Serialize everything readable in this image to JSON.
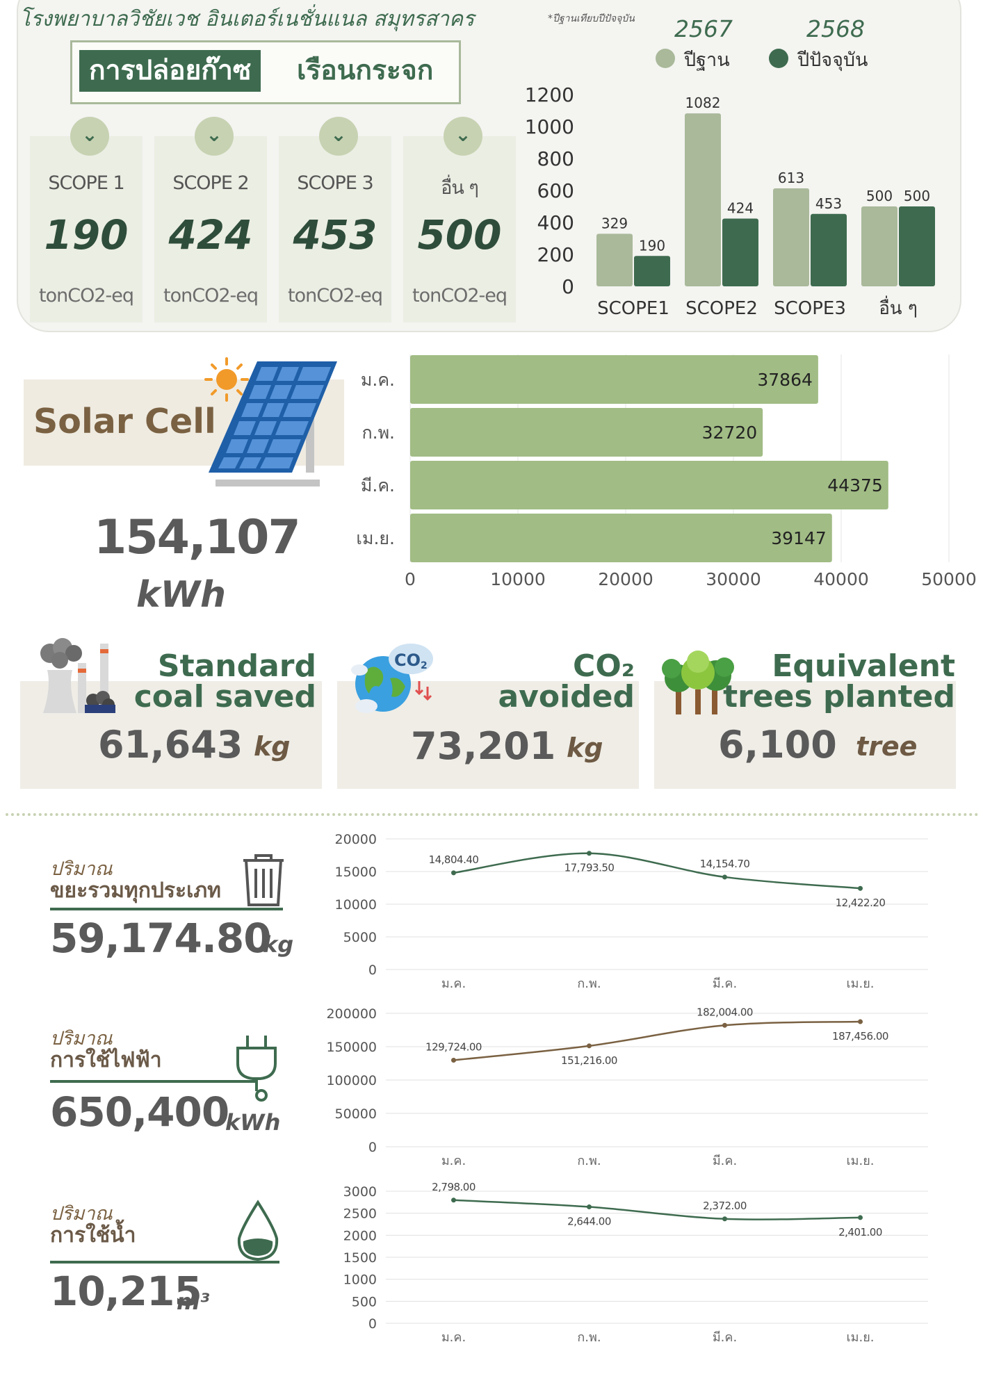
{
  "header": {
    "hospital_name": "โรงพยาบาลวิชัยเวช อินเตอร์เนชั่นแนล สมุทรสาคร",
    "baseline_note": "*ปีฐานเทียบปีปัจจุบัน",
    "title_part1": "การปล่อยก๊าซ",
    "title_part2": "เรือนกระจก"
  },
  "scopes": [
    {
      "label": "SCOPE 1",
      "value": "190",
      "unit": "tonCO2-eq"
    },
    {
      "label": "SCOPE 2",
      "value": "424",
      "unit": "tonCO2-eq"
    },
    {
      "label": "SCOPE 3",
      "value": "453",
      "unit": "tonCO2-eq"
    },
    {
      "label": "อื่น ๆ",
      "value": "500",
      "unit": "tonCO2-eq"
    }
  ],
  "legend": {
    "base_year": "2567",
    "base_label": "ปีฐาน",
    "current_year": "2568",
    "current_label": "ปีปัจจุบัน",
    "colors": {
      "base": "#a9b99a",
      "current": "#3e6b4f"
    }
  },
  "solar": {
    "title": "Solar Cell",
    "total": "154,107",
    "unit": "kWh"
  },
  "equivalents": [
    {
      "title_line1": "Standard",
      "title_line2": "coal saved",
      "value": "61,643",
      "unit": "kg",
      "icon": "power-plant-icon"
    },
    {
      "title_line1": "CO₂",
      "title_line2": "avoided",
      "value": "73,201",
      "unit": "kg",
      "icon": "earth-co2-icon"
    },
    {
      "title_line1": "Equivalent",
      "title_line2": "trees planted",
      "value": "6,100",
      "unit": "tree",
      "icon": "trees-icon"
    }
  ],
  "metrics": [
    {
      "sub": "ปริมาณ",
      "name": "ขยะรวมทุกประเภท",
      "value": "59,174.80",
      "unit": "kg",
      "icon": "trash-bin-icon"
    },
    {
      "sub": "ปริมาณ",
      "name": "การใช้ไฟฟ้า",
      "value": "650,400",
      "unit": "kWh",
      "icon": "electric-plug-icon"
    },
    {
      "sub": "ปริมาณ",
      "name": "การใช้น้ำ",
      "value": "10,215",
      "unit": "m³",
      "icon": "water-drop-icon"
    }
  ],
  "chart_data": [
    {
      "type": "bar",
      "categories": [
        "SCOPE1",
        "SCOPE2",
        "SCOPE3",
        "อื่น ๆ"
      ],
      "series": [
        {
          "name": "ปีฐาน",
          "values": [
            329,
            1082,
            613,
            500
          ]
        },
        {
          "name": "ปีปัจจุบัน",
          "values": [
            190,
            424,
            453,
            500
          ]
        }
      ],
      "ylim": [
        0,
        1200
      ],
      "yticks": [
        0,
        200,
        400,
        600,
        800,
        1000,
        1200
      ]
    },
    {
      "type": "bar",
      "orientation": "horizontal",
      "categories": [
        "ม.ค.",
        "ก.พ.",
        "มี.ค.",
        "เม.ย."
      ],
      "values": [
        37864,
        32720,
        44375,
        39147
      ],
      "xlim": [
        0,
        50000
      ],
      "xticks": [
        0,
        10000,
        20000,
        30000,
        40000,
        50000
      ]
    },
    {
      "type": "line",
      "categories": [
        "ม.ค.",
        "ก.พ.",
        "มี.ค.",
        "เม.ย."
      ],
      "values": [
        14804.4,
        17793.5,
        14154.7,
        12422.2
      ],
      "labels": [
        "14,804.40",
        "17,793.50",
        "14,154.70",
        "12,422.20"
      ],
      "ylim": [
        0,
        20000
      ],
      "yticks": [
        0,
        5000,
        10000,
        15000,
        20000
      ]
    },
    {
      "type": "line",
      "categories": [
        "ม.ค.",
        "ก.พ.",
        "มี.ค.",
        "เม.ย."
      ],
      "values": [
        129724.0,
        151216.0,
        182004.0,
        187456.0
      ],
      "labels": [
        "129,724.00",
        "151,216.00",
        "182,004.00",
        "187,456.00"
      ],
      "ylim": [
        0,
        200000
      ],
      "yticks": [
        0,
        50000,
        100000,
        150000,
        200000
      ]
    },
    {
      "type": "line",
      "categories": [
        "ม.ค.",
        "ก.พ.",
        "มี.ค.",
        "เม.ย."
      ],
      "values": [
        2798.0,
        2644.0,
        2372.0,
        2401.0
      ],
      "labels": [
        "2,798.00",
        "2,644.00",
        "2,372.00",
        "2,401.00"
      ],
      "ylim": [
        0,
        3000
      ],
      "yticks": [
        0,
        500,
        1000,
        1500,
        2000,
        2500,
        3000
      ]
    }
  ]
}
